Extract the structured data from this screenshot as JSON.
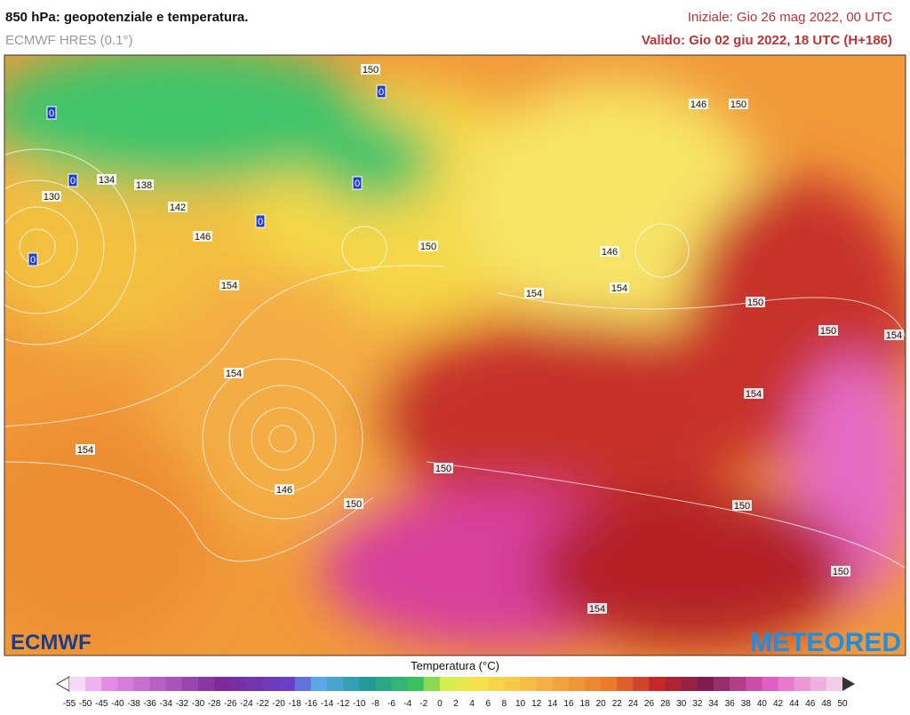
{
  "header": {
    "title": "850 hPa: geopotenziale e temperatura.",
    "model": "ECMWF HRES (0.1°)",
    "init": "Iniziale: Gio 26 mag 2022, 00 UTC",
    "valid": "Valido: Gio 02 giu 2022, 18 UTC (H+186)"
  },
  "map": {
    "contour_labels": [
      "150",
      "0",
      "0",
      "0",
      "0",
      "0",
      "0",
      "146",
      "150",
      "134",
      "138",
      "130",
      "142",
      "146",
      "150",
      "146",
      "154",
      "150",
      "150",
      "154",
      "154",
      "154",
      "150",
      "154",
      "154",
      "154",
      "146",
      "150",
      "150",
      "150",
      "154"
    ],
    "logos": {
      "left": "ECMWF",
      "right": "METEORED"
    }
  },
  "legend": {
    "title": "Temperatura (°C)",
    "ticks": [
      -55,
      -50,
      -45,
      -40,
      -38,
      -36,
      -34,
      -32,
      -30,
      -28,
      -26,
      -24,
      -22,
      -20,
      -18,
      -16,
      -14,
      -12,
      -10,
      -8,
      -6,
      -4,
      -2,
      0,
      2,
      4,
      6,
      8,
      10,
      12,
      14,
      16,
      18,
      20,
      22,
      24,
      26,
      28,
      30,
      32,
      34,
      36,
      38,
      40,
      42,
      44,
      46,
      48,
      50
    ]
  }
}
